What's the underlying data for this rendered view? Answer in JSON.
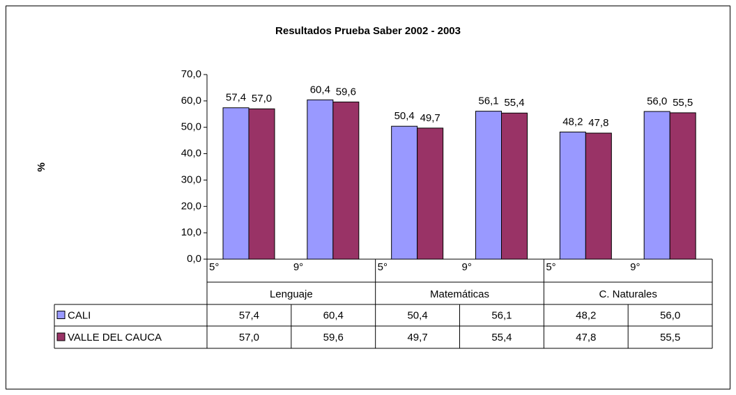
{
  "chart_data": {
    "type": "bar",
    "title": "Resultados Prueba Saber 2002 - 2003",
    "y_label": "%",
    "categories": [
      "5°",
      "9°",
      "5°",
      "9°",
      "5°",
      "9°"
    ],
    "groups": [
      "Lenguaje",
      "Matemáticas",
      "C. Naturales"
    ],
    "series": [
      {
        "name": "CALI",
        "color": "#9999ff",
        "values": [
          57.4,
          60.4,
          50.4,
          56.1,
          48.2,
          56.0
        ],
        "value_labels": [
          "57,4",
          "60,4",
          "50,4",
          "56,1",
          "48,2",
          "56,0"
        ]
      },
      {
        "name": "VALLE DEL CAUCA",
        "color": "#993366",
        "values": [
          57.0,
          59.6,
          49.7,
          55.4,
          47.8,
          55.5
        ],
        "value_labels": [
          "57,0",
          "59,6",
          "49,7",
          "55,4",
          "47,8",
          "55,5"
        ]
      }
    ],
    "ylim": [
      0,
      70
    ],
    "yticks": [
      {
        "value": 0,
        "label": "0,0"
      },
      {
        "value": 10,
        "label": "10,0"
      },
      {
        "value": 20,
        "label": "20,0"
      },
      {
        "value": 30,
        "label": "30,0"
      },
      {
        "value": 40,
        "label": "40,0"
      },
      {
        "value": 50,
        "label": "50,0"
      },
      {
        "value": 60,
        "label": "60,0"
      },
      {
        "value": 70,
        "label": "70,0"
      }
    ],
    "data_table": true
  }
}
